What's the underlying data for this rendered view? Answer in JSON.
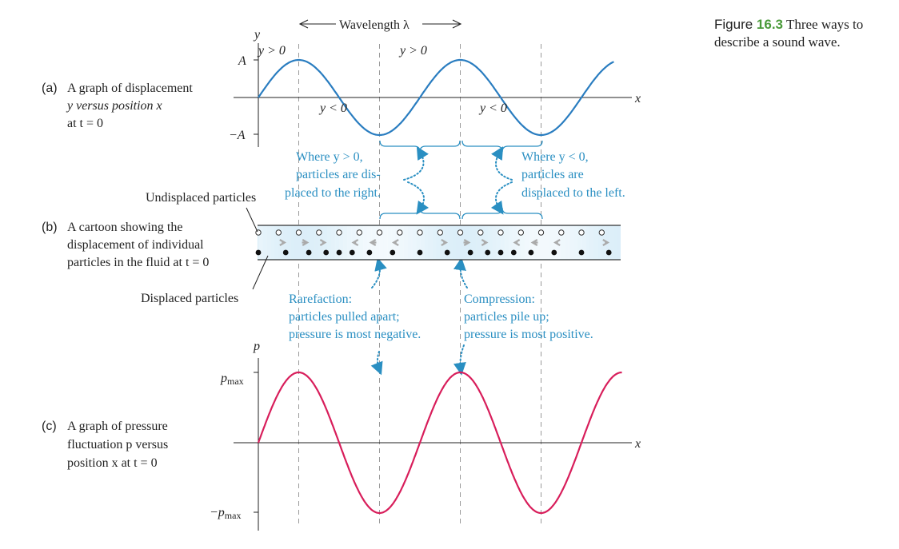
{
  "figure": {
    "number_prefix": "Figure ",
    "number": "16.3",
    "title": " Three ways to describe a sound wave."
  },
  "panel_a": {
    "tag": "(a)",
    "desc_line1": "A graph of displacement",
    "desc_line2": "y versus position x",
    "desc_line3": "at t = 0",
    "y_axis_label": "y",
    "x_axis_label": "x",
    "amp_pos_label": "A",
    "amp_neg_label": "−A",
    "wavelength_label": "Wavelength λ",
    "y_pos_label": "y > 0",
    "y_neg_label": "y < 0"
  },
  "panel_b": {
    "tag": "(b)",
    "desc_line1": "A cartoon showing the",
    "desc_line2": "displacement of individual",
    "desc_line3": "particles in the fluid at t = 0",
    "undisplaced_label": "Undisplaced particles",
    "displaced_label": "Displaced particles",
    "where_pos": [
      "Where y > 0,",
      "particles are dis-",
      "placed to the right."
    ],
    "where_neg": [
      "Where y < 0,",
      "particles are",
      "displaced to the left."
    ],
    "rarefaction": [
      "Rarefaction:",
      "particles pulled apart;",
      "pressure is most negative."
    ],
    "compression": [
      "Compression:",
      "particles pile up;",
      "pressure is most positive."
    ]
  },
  "panel_c": {
    "tag": "(c)",
    "desc_line1": "A graph of pressure",
    "desc_line2": "fluctuation p versus",
    "desc_line3": "position x at t = 0",
    "y_axis_label": "p",
    "x_axis_label": "x",
    "pmax_label": "p",
    "pmax_sub": "max",
    "neg_pmax_label": "−p",
    "neg_pmax_sub": "max"
  },
  "chart_data": [
    {
      "type": "line",
      "title": "",
      "xlabel": "x",
      "ylabel": "y",
      "function": "y = A sin(2πx/λ)",
      "x_units": "wavelengths",
      "x": [
        0,
        0.25,
        0.5,
        0.75,
        1.0,
        1.25,
        1.5,
        1.75
      ],
      "series": [
        {
          "values": [
            0,
            1,
            0,
            -1,
            0,
            1,
            0,
            -1
          ]
        }
      ],
      "ytick_labels": [
        "A",
        "−A"
      ],
      "ylim": [
        -1,
        1
      ]
    },
    {
      "type": "line",
      "title": "",
      "xlabel": "x",
      "ylabel": "p",
      "function": "p = p_max sin(2πx/λ)",
      "x_units": "wavelengths",
      "x": [
        0,
        0.25,
        0.5,
        0.75,
        1.0,
        1.25,
        1.5,
        1.75,
        2.0,
        2.25
      ],
      "series": [
        {
          "values": [
            0,
            1,
            0,
            -1,
            0,
            1,
            0,
            -1,
            0,
            1
          ]
        }
      ],
      "ytick_labels": [
        "p_max",
        "−p_max"
      ],
      "ylim": [
        -1,
        1
      ]
    }
  ],
  "colors": {
    "displacement_curve": "#2a7dc0",
    "pressure_curve": "#d81e5b",
    "callout_text": "#2a8fc2",
    "figure_number": "#4a9a3a"
  }
}
